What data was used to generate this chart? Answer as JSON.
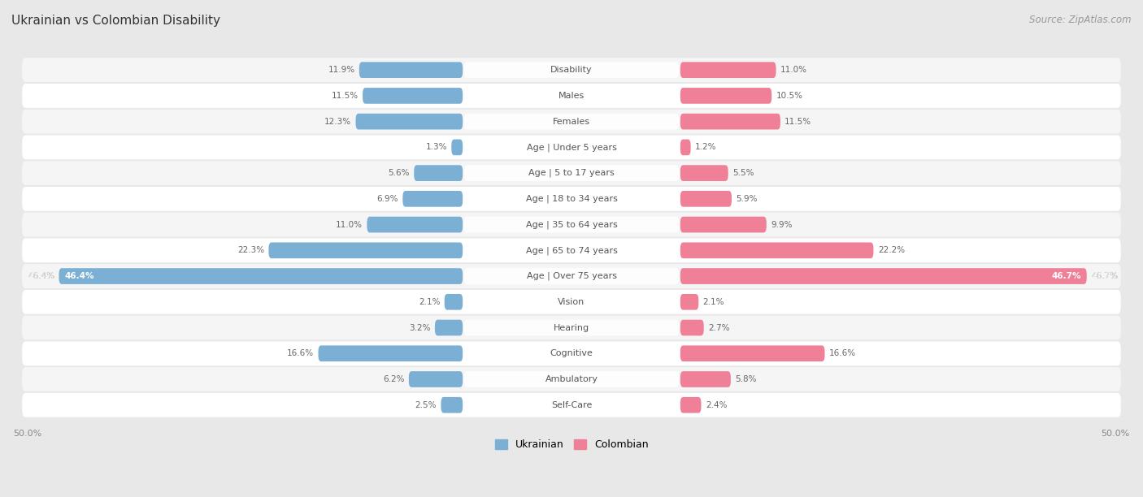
{
  "title": "Ukrainian vs Colombian Disability",
  "source": "Source: ZipAtlas.com",
  "categories": [
    "Disability",
    "Males",
    "Females",
    "Age | Under 5 years",
    "Age | 5 to 17 years",
    "Age | 18 to 34 years",
    "Age | 35 to 64 years",
    "Age | 65 to 74 years",
    "Age | Over 75 years",
    "Vision",
    "Hearing",
    "Cognitive",
    "Ambulatory",
    "Self-Care"
  ],
  "ukrainian_values": [
    11.9,
    11.5,
    12.3,
    1.3,
    5.6,
    6.9,
    11.0,
    22.3,
    46.4,
    2.1,
    3.2,
    16.6,
    6.2,
    2.5
  ],
  "colombian_values": [
    11.0,
    10.5,
    11.5,
    1.2,
    5.5,
    5.9,
    9.9,
    22.2,
    46.7,
    2.1,
    2.7,
    16.6,
    5.8,
    2.4
  ],
  "ukrainian_color": "#7bafd4",
  "colombian_color": "#f08098",
  "ukrainian_label": "Ukrainian",
  "colombian_label": "Colombian",
  "max_value": 50.0,
  "bg_color": "#e8e8e8",
  "row_colors": [
    "#f5f5f5",
    "#ffffff"
  ],
  "title_fontsize": 11,
  "source_fontsize": 8.5,
  "label_fontsize": 8,
  "value_fontsize": 7.5,
  "axis_label_fontsize": 8
}
